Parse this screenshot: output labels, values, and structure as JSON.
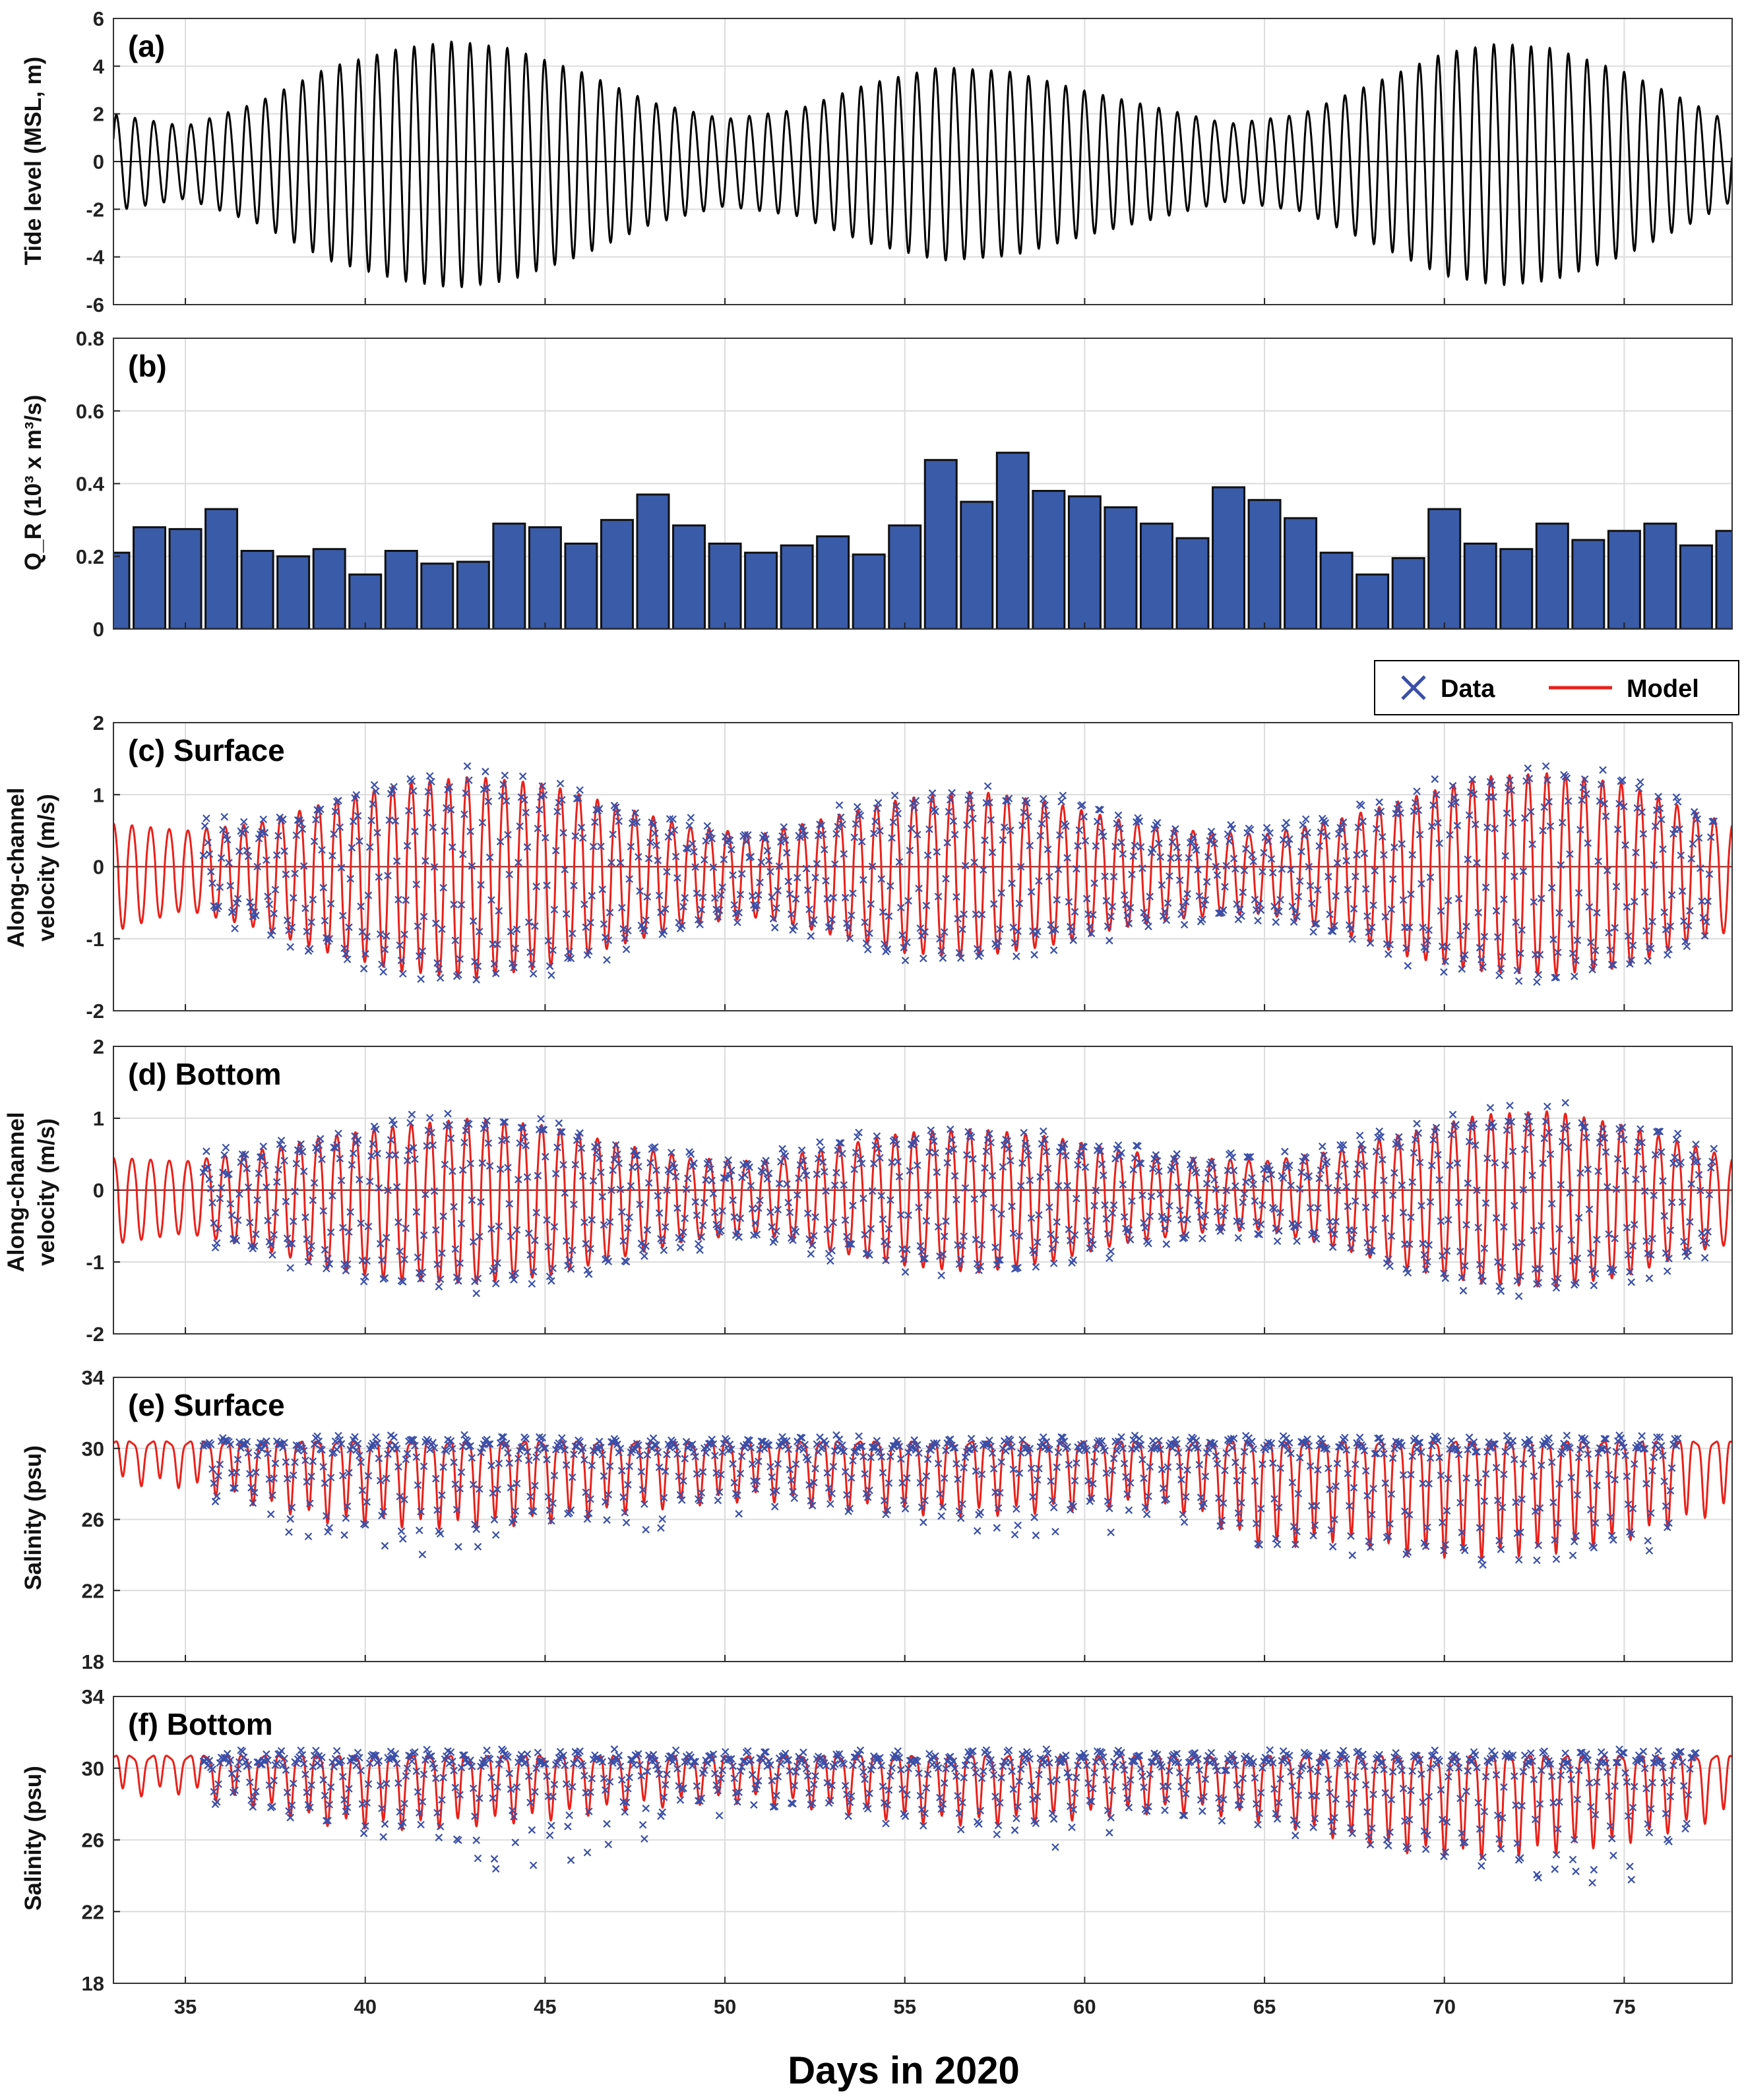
{
  "chart_data": [
    {
      "id": "a",
      "type": "line",
      "panel_label": "(a)",
      "ylabel": "Tide level (MSL, m)",
      "xlim": [
        33,
        78
      ],
      "ylim": [
        -6,
        6
      ],
      "yticks": [
        -6,
        -4,
        -2,
        0,
        2,
        4,
        6
      ],
      "grid": true,
      "zero_line": true,
      "series": [
        {
          "name": "Tide level",
          "color": "#000000",
          "description": "semi-diurnal tide, spring-neap modulation",
          "envelope_days": [
            33,
            35,
            37,
            39,
            41,
            42.5,
            44,
            46,
            48,
            50,
            52,
            54,
            56,
            58,
            60,
            62,
            64,
            66,
            68,
            70,
            71.5,
            73,
            75,
            77,
            78
          ],
          "envelope_amp_m": [
            2.0,
            1.5,
            2.5,
            4.0,
            4.8,
            5.1,
            4.8,
            3.8,
            2.5,
            1.8,
            2.2,
            3.3,
            4.0,
            3.8,
            3.0,
            2.3,
            1.6,
            2.0,
            3.3,
            4.6,
            5.0,
            4.8,
            3.8,
            2.4,
            1.6
          ]
        }
      ]
    },
    {
      "id": "b",
      "type": "bar",
      "panel_label": "(b)",
      "ylabel": "Q_R (10³ x m³/s)",
      "xlim": [
        33,
        78
      ],
      "ylim": [
        0,
        0.8
      ],
      "yticks": [
        0,
        0.2,
        0.4,
        0.6,
        0.8
      ],
      "grid": true,
      "bar_color": "#3a5ba8",
      "series": [
        {
          "name": "Q_R",
          "x": [
            33,
            34,
            35,
            36,
            37,
            38,
            39,
            40,
            41,
            42,
            43,
            44,
            45,
            46,
            47,
            48,
            49,
            50,
            51,
            52,
            53,
            54,
            55,
            56,
            57,
            58,
            59,
            60,
            61,
            62,
            63,
            64,
            65,
            66,
            67,
            68,
            69,
            70,
            71,
            72,
            73,
            74,
            75,
            76,
            77,
            78
          ],
          "values": [
            0.21,
            0.28,
            0.275,
            0.33,
            0.215,
            0.2,
            0.22,
            0.15,
            0.215,
            0.18,
            0.185,
            0.29,
            0.28,
            0.235,
            0.3,
            0.37,
            0.285,
            0.235,
            0.21,
            0.23,
            0.255,
            0.205,
            0.285,
            0.465,
            0.35,
            0.485,
            0.38,
            0.365,
            0.335,
            0.29,
            0.25,
            0.39,
            0.355,
            0.305,
            0.21,
            0.15,
            0.195,
            0.33,
            0.235,
            0.22,
            0.29,
            0.245,
            0.27,
            0.29,
            0.23,
            0.27
          ]
        }
      ]
    },
    {
      "id": "c",
      "type": "line",
      "panel_label": "(c) Surface",
      "ylabel": [
        "Along-channel",
        "velocity (m/s)"
      ],
      "xlim": [
        33,
        78
      ],
      "ylim": [
        -2,
        2
      ],
      "yticks": [
        -2,
        -1,
        0,
        1,
        2
      ],
      "grid": true,
      "zero_line": true,
      "series": [
        {
          "name": "Model",
          "color": "#e8211b",
          "envelope_days": [
            33,
            35,
            37,
            39,
            41,
            43,
            45,
            47,
            49,
            51,
            53,
            55,
            57,
            59,
            61,
            63,
            65,
            67,
            69,
            71,
            73,
            75,
            77,
            78
          ],
          "flood_peak_ms": [
            0.6,
            0.5,
            0.6,
            0.9,
            1.15,
            1.25,
            1.15,
            0.85,
            0.55,
            0.45,
            0.7,
            0.95,
            1.05,
            0.9,
            0.65,
            0.5,
            0.45,
            0.65,
            0.95,
            1.25,
            1.3,
            1.15,
            0.75,
            0.6
          ],
          "ebb_trough_ms": [
            -0.9,
            -0.6,
            -0.85,
            -1.2,
            -1.45,
            -1.55,
            -1.4,
            -1.1,
            -0.8,
            -0.7,
            -0.95,
            -1.2,
            -1.25,
            -1.1,
            -0.85,
            -0.7,
            -0.65,
            -0.9,
            -1.25,
            -1.45,
            -1.5,
            -1.4,
            -1.0,
            -0.9
          ]
        },
        {
          "name": "Data",
          "color": "#3a4fa8",
          "marker": "x",
          "start_day": 35.5,
          "end_day": 77.5
        }
      ]
    },
    {
      "id": "d",
      "type": "line",
      "panel_label": "(d) Bottom",
      "ylabel": [
        "Along-channel",
        "velocity (m/s)"
      ],
      "xlim": [
        33,
        78
      ],
      "ylim": [
        -2,
        2
      ],
      "yticks": [
        -2,
        -1,
        0,
        1,
        2
      ],
      "grid": true,
      "zero_line": true,
      "series": [
        {
          "name": "Model",
          "color": "#e8211b",
          "envelope_days": [
            33,
            35,
            37,
            39,
            41,
            43,
            45,
            47,
            49,
            51,
            53,
            55,
            57,
            59,
            61,
            63,
            65,
            67,
            69,
            71,
            73,
            75,
            77,
            78
          ],
          "flood_peak_ms": [
            0.45,
            0.4,
            0.55,
            0.75,
            0.9,
            1.0,
            0.9,
            0.65,
            0.45,
            0.4,
            0.6,
            0.8,
            0.85,
            0.75,
            0.55,
            0.45,
            0.4,
            0.55,
            0.8,
            1.05,
            1.1,
            0.9,
            0.6,
            0.45
          ],
          "ebb_trough_ms": [
            -0.75,
            -0.6,
            -0.8,
            -1.1,
            -1.25,
            -1.3,
            -1.2,
            -0.95,
            -0.7,
            -0.6,
            -0.85,
            -1.05,
            -1.15,
            -1.0,
            -0.75,
            -0.6,
            -0.55,
            -0.8,
            -1.1,
            -1.3,
            -1.35,
            -1.2,
            -0.85,
            -0.75
          ]
        },
        {
          "name": "Data",
          "color": "#3a4fa8",
          "marker": "x",
          "start_day": 35.5,
          "end_day": 77.5
        }
      ]
    },
    {
      "id": "e",
      "type": "line",
      "panel_label": "(e) Surface",
      "ylabel": "Salinity (psu)",
      "xlim": [
        33,
        78
      ],
      "ylim": [
        18,
        34
      ],
      "yticks": [
        18,
        22,
        26,
        30,
        34
      ],
      "grid": true,
      "series": [
        {
          "name": "Model",
          "color": "#e8211b",
          "high_psu": 30.3,
          "envelope_days": [
            33,
            35,
            37,
            39,
            41,
            43,
            45,
            47,
            49,
            51,
            53,
            55,
            57,
            59,
            61,
            63,
            65,
            67,
            69,
            71,
            73,
            75,
            77,
            78
          ],
          "low_psu": [
            28.2,
            28.0,
            27.0,
            26.0,
            25.8,
            25.7,
            26.0,
            26.5,
            27.0,
            27.3,
            26.8,
            26.5,
            26.4,
            26.6,
            26.9,
            26.5,
            24.5,
            25.0,
            24.2,
            24.0,
            24.3,
            25.0,
            26.2,
            26.8
          ]
        },
        {
          "name": "Data",
          "color": "#3a4fa8",
          "marker": "x",
          "start_day": 35.5,
          "end_day": 76.5,
          "low_outlier_psu": [
            28,
            25.5,
            24.2,
            23.5,
            23.8,
            24.5,
            25.2,
            26.0,
            26.5,
            27.0,
            25.8,
            25.0,
            25.0,
            25.2,
            25.8,
            25.5,
            23.5,
            24.0,
            23.0,
            23.2,
            23.5,
            24.5,
            25.0
          ]
        }
      ]
    },
    {
      "id": "f",
      "type": "line",
      "panel_label": "(f) Bottom",
      "ylabel": "Salinity (psu)",
      "xlim": [
        33,
        78
      ],
      "ylim": [
        18,
        34
      ],
      "yticks": [
        18,
        22,
        26,
        30,
        34
      ],
      "xticks": [
        35,
        40,
        45,
        50,
        55,
        60,
        65,
        70,
        75
      ],
      "xlabel": "Days in 2020",
      "grid": true,
      "series": [
        {
          "name": "Model",
          "color": "#e8211b",
          "high_psu": 30.6,
          "envelope_days": [
            33,
            35,
            37,
            39,
            41,
            43,
            45,
            47,
            49,
            51,
            53,
            55,
            57,
            59,
            61,
            63,
            65,
            67,
            69,
            71,
            73,
            75,
            77,
            78
          ],
          "low_psu": [
            28.6,
            28.8,
            28.0,
            27.0,
            26.8,
            27.0,
            27.3,
            27.8,
            28.2,
            28.3,
            27.8,
            27.2,
            27.0,
            27.2,
            27.6,
            27.8,
            27.2,
            26.3,
            25.5,
            25.2,
            25.5,
            26.0,
            27.0,
            27.6
          ]
        },
        {
          "name": "Data",
          "color": "#3a4fa8",
          "marker": "x",
          "start_day": 35.5,
          "end_day": 77,
          "low_outlier_psu": [
            29,
            28,
            26.5,
            25.0,
            24.3,
            24.6,
            25.5,
            26.8,
            27.8,
            28.0,
            27.0,
            25.8,
            25.5,
            26.0,
            26.8,
            27.0,
            26.5,
            25.2,
            24.0,
            23.5,
            23.8,
            24.5,
            25.5
          ]
        }
      ]
    }
  ],
  "legend": {
    "position": "top-right",
    "items": [
      {
        "label": "Data",
        "color": "#3a4fa8",
        "marker": "x"
      },
      {
        "label": "Model",
        "color": "#e8211b",
        "marker": "line"
      }
    ]
  },
  "xlabel": "Days in 2020"
}
